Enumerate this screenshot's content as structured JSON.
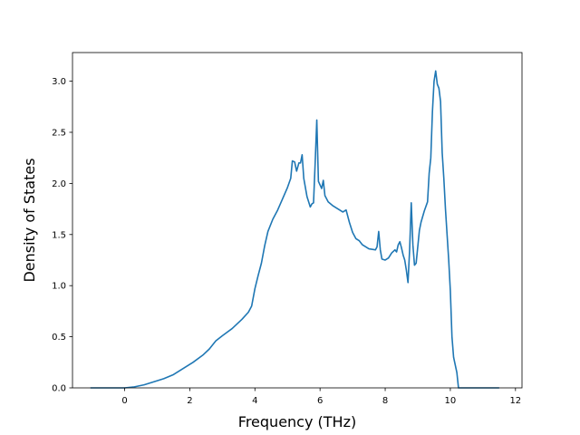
{
  "chart_data": {
    "type": "line",
    "title": "",
    "xlabel": "Frequency (THz)",
    "ylabel": "Density of States",
    "xlim": [
      -1.6,
      12.2
    ],
    "ylim": [
      0.0,
      3.28
    ],
    "xticks": [
      0,
      2,
      4,
      6,
      8,
      10,
      12
    ],
    "xtick_labels": [
      "0",
      "2",
      "4",
      "6",
      "8",
      "10",
      "12"
    ],
    "yticks": [
      0.0,
      0.5,
      1.0,
      1.5,
      2.0,
      2.5,
      3.0
    ],
    "ytick_labels": [
      "0.0",
      "0.5",
      "1.0",
      "1.5",
      "2.0",
      "2.5",
      "3.0"
    ],
    "grid": false,
    "line_color": "#1f77b4",
    "series": [
      {
        "x": [
          -1.05,
          -0.5,
          0.0,
          0.3,
          0.6,
          0.9,
          1.2,
          1.5,
          1.8,
          2.1,
          2.4,
          2.6,
          2.8,
          3.0,
          3.3,
          3.6,
          3.8,
          3.9,
          4.0,
          4.1,
          4.2,
          4.3,
          4.4,
          4.55,
          4.7,
          4.85,
          5.0,
          5.1,
          5.15,
          5.22,
          5.28,
          5.35,
          5.4,
          5.45,
          5.5,
          5.6,
          5.7,
          5.75,
          5.8,
          5.85,
          5.9,
          5.95,
          6.05,
          6.1,
          6.15,
          6.25,
          6.4,
          6.55,
          6.7,
          6.8,
          6.9,
          7.0,
          7.1,
          7.2,
          7.3,
          7.4,
          7.5,
          7.7,
          7.75,
          7.8,
          7.85,
          7.9,
          8.0,
          8.1,
          8.2,
          8.3,
          8.35,
          8.4,
          8.45,
          8.5,
          8.55,
          8.6,
          8.65,
          8.7,
          8.75,
          8.8,
          8.85,
          8.9,
          8.95,
          9.05,
          9.1,
          9.2,
          9.3,
          9.35,
          9.4,
          9.45,
          9.5,
          9.55,
          9.6,
          9.65,
          9.7,
          9.75,
          9.8,
          9.85,
          9.9,
          9.95,
          10.0,
          10.05,
          10.1,
          10.2,
          10.25,
          10.3,
          10.35,
          10.4,
          10.45,
          10.5,
          10.7,
          11.0,
          11.5
        ],
        "y": [
          0.0,
          0.0,
          0.0,
          0.01,
          0.03,
          0.06,
          0.09,
          0.13,
          0.19,
          0.25,
          0.32,
          0.38,
          0.46,
          0.51,
          0.58,
          0.67,
          0.74,
          0.8,
          0.97,
          1.1,
          1.22,
          1.39,
          1.53,
          1.65,
          1.74,
          1.85,
          1.96,
          2.05,
          2.22,
          2.21,
          2.12,
          2.2,
          2.2,
          2.28,
          2.05,
          1.87,
          1.77,
          1.8,
          1.81,
          2.2,
          2.62,
          2.02,
          1.95,
          2.03,
          1.88,
          1.82,
          1.78,
          1.75,
          1.72,
          1.74,
          1.62,
          1.52,
          1.46,
          1.44,
          1.4,
          1.38,
          1.36,
          1.35,
          1.38,
          1.53,
          1.35,
          1.26,
          1.25,
          1.27,
          1.32,
          1.35,
          1.33,
          1.4,
          1.43,
          1.37,
          1.3,
          1.25,
          1.15,
          1.03,
          1.35,
          1.81,
          1.4,
          1.2,
          1.22,
          1.54,
          1.62,
          1.73,
          1.82,
          2.1,
          2.25,
          2.7,
          3.0,
          3.1,
          2.97,
          2.93,
          2.8,
          2.3,
          2.05,
          1.75,
          1.5,
          1.25,
          0.95,
          0.5,
          0.3,
          0.15,
          0.0,
          0.0,
          0.0,
          0.0,
          0.0,
          0.0,
          0.0,
          0.0,
          0.0
        ]
      }
    ]
  }
}
